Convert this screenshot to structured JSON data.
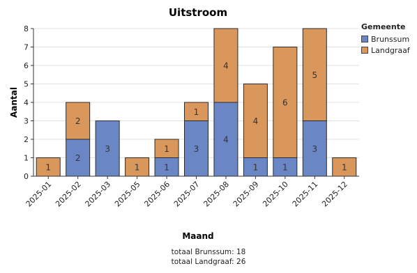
{
  "chart_data": {
    "type": "bar",
    "stacked": true,
    "title": "Uitstroom",
    "xlabel": "Maand",
    "ylabel": "Aantal",
    "ylim": [
      0,
      8
    ],
    "yticks": [
      0,
      1,
      2,
      3,
      4,
      5,
      6,
      7,
      8
    ],
    "grid": true,
    "categories": [
      "2025-01",
      "2025-02",
      "2025-03",
      "2025-05",
      "2025-06",
      "2025-07",
      "2025-08",
      "2025-09",
      "2025-10",
      "2025-11",
      "2025-12"
    ],
    "legend_title": "Gemeente",
    "legend_position": "top-right, outside",
    "series": [
      {
        "name": "Brunssum",
        "color": "#6b86c4",
        "values": [
          0,
          2,
          3,
          0,
          1,
          3,
          4,
          1,
          1,
          3,
          0
        ]
      },
      {
        "name": "Landgraaf",
        "color": "#d9975c",
        "values": [
          1,
          2,
          0,
          1,
          1,
          1,
          4,
          4,
          6,
          5,
          1
        ]
      }
    ]
  },
  "footer": {
    "total_brunssum": "totaal Brunssum: 18",
    "total_landgraaf": "totaal Landgraaf: 26"
  }
}
